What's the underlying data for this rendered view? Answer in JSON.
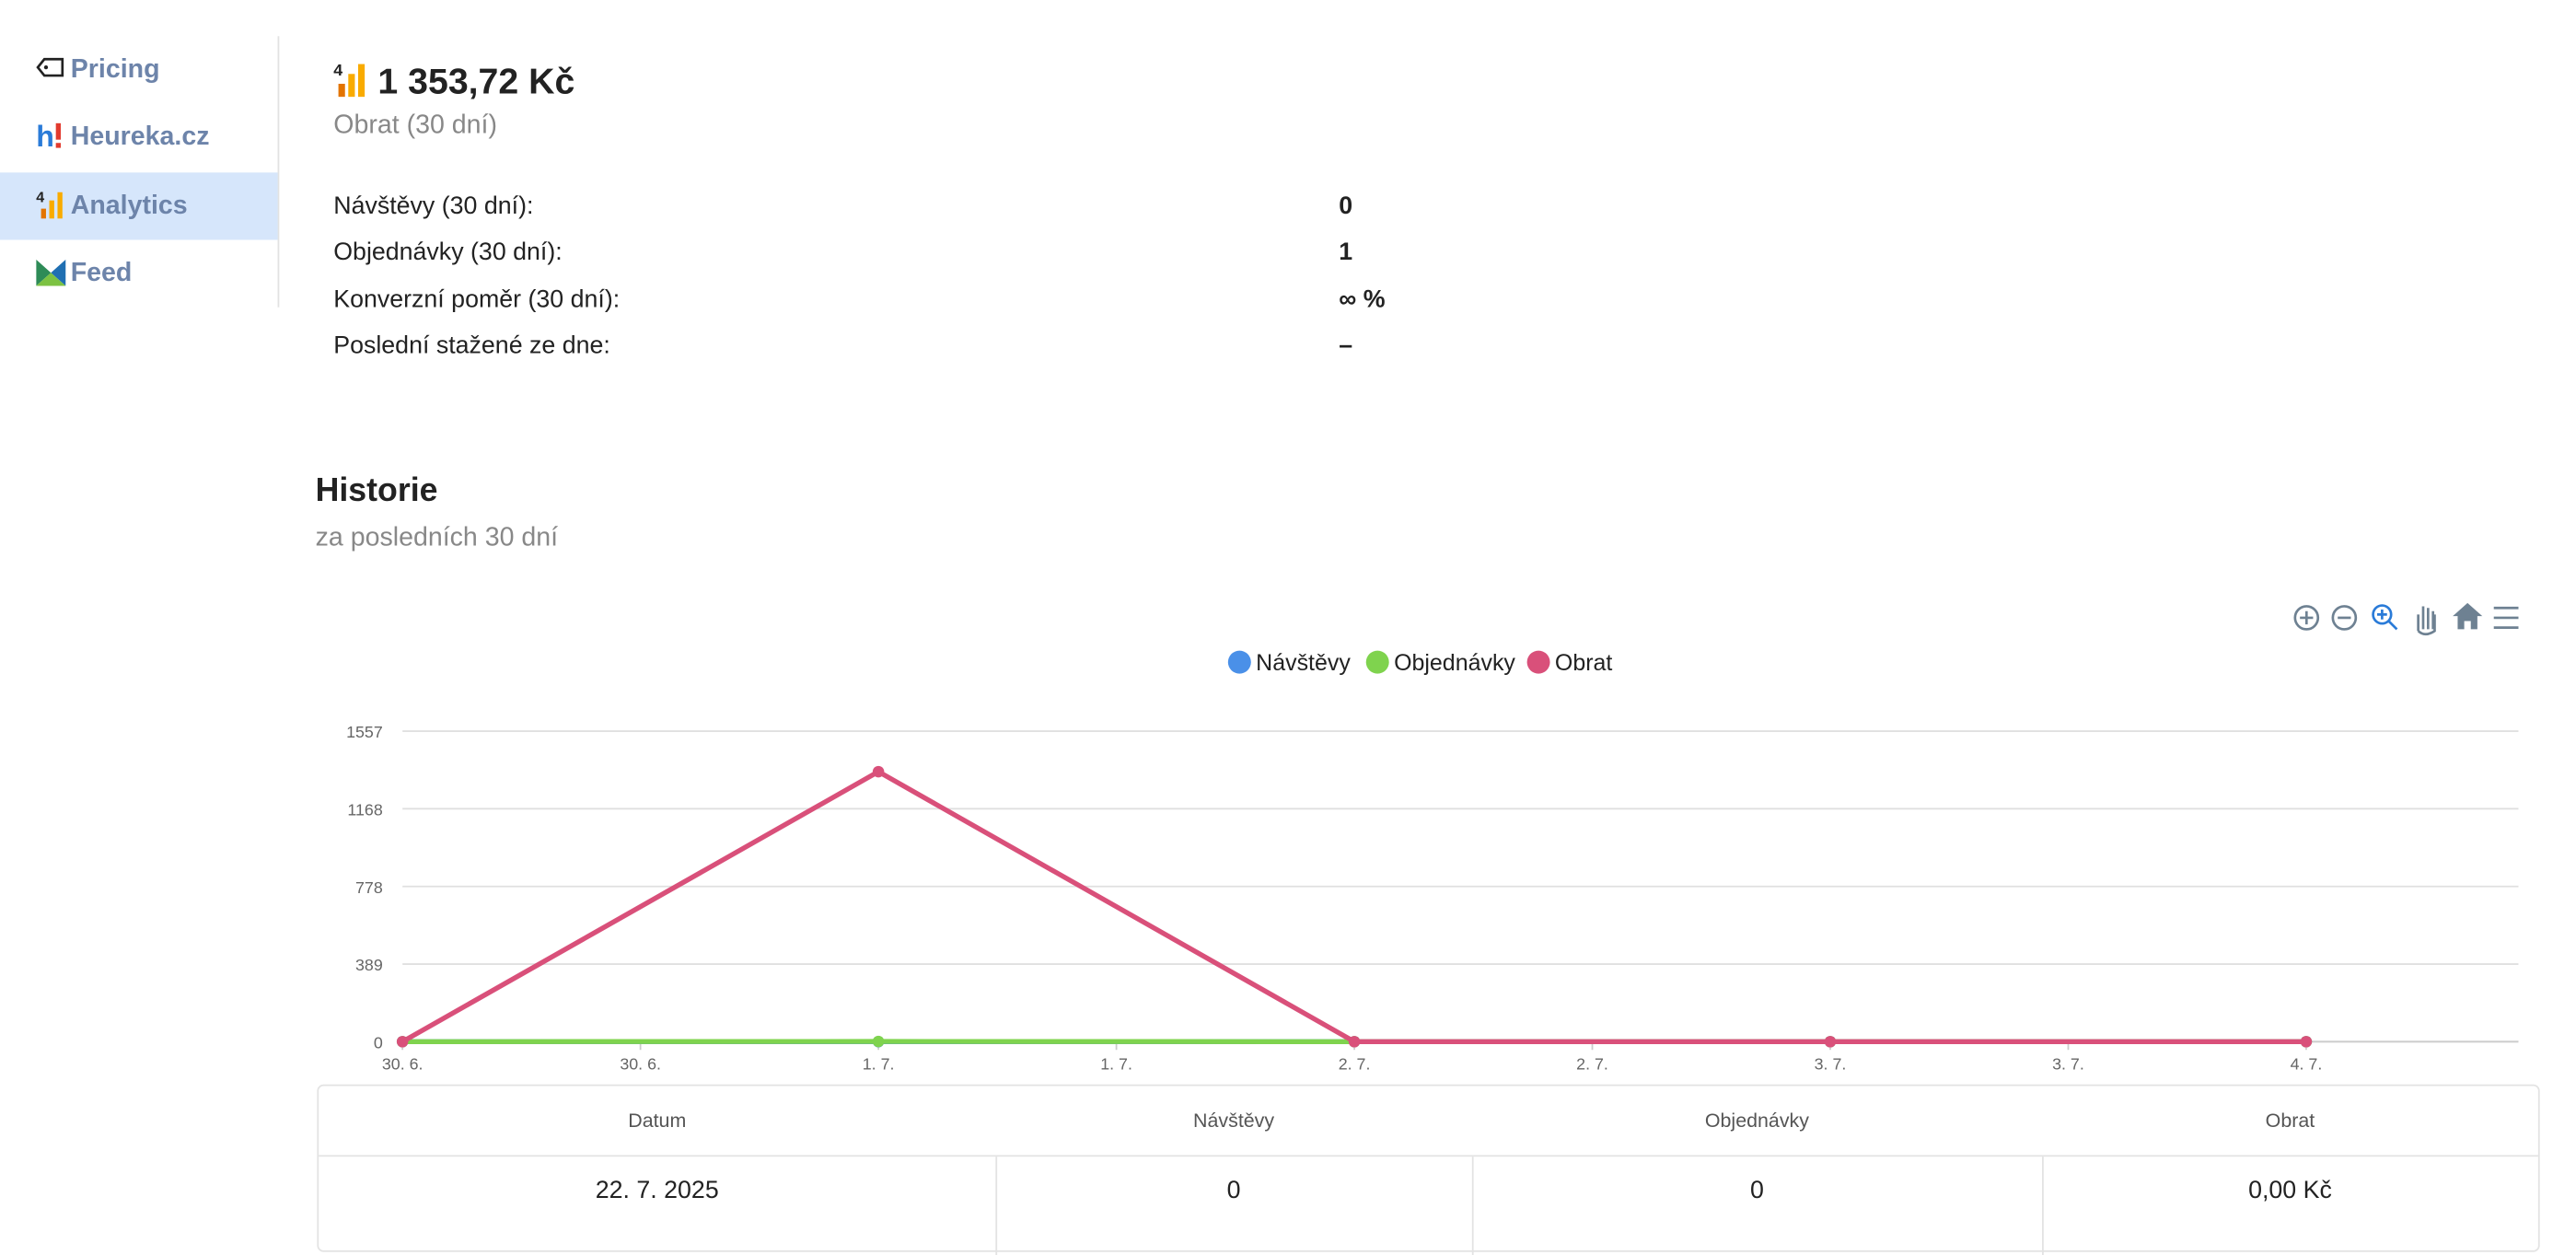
{
  "sidebar": {
    "items": [
      "Pricing",
      "Heureka.cz",
      "Analytics",
      "Feed"
    ]
  },
  "summary": {
    "value": "1 353,72 Kč",
    "label": "Obrat (30 dní)",
    "stats": [
      {
        "label": "Návštěvy (30 dní):",
        "value": "0"
      },
      {
        "label": "Objednávky (30 dní):",
        "value": "1"
      },
      {
        "label": "Konverzní poměr (30 dní):",
        "value": "∞ %"
      },
      {
        "label": "Poslední stažené ze dne:",
        "value": "–"
      }
    ]
  },
  "history": {
    "title": "Historie",
    "subtitle": "za posledních 30 dní"
  },
  "chart_data": {
    "type": "line",
    "categories": [
      "30. 6.",
      "1. 7.",
      "2. 7.",
      "3. 7.",
      "4. 7."
    ],
    "series": [
      {
        "name": "Návštěvy",
        "color": "#4a90e8",
        "values": [
          0,
          0,
          0,
          0,
          0
        ]
      },
      {
        "name": "Objednávky",
        "color": "#7fd34e",
        "values": [
          0,
          1,
          0,
          0,
          0
        ]
      },
      {
        "name": "Obrat",
        "color": "#d9507a",
        "values": [
          0,
          1353.72,
          0,
          0,
          0
        ]
      }
    ],
    "ylim": [
      0,
      1557
    ],
    "yticks": [
      0,
      389,
      778,
      1168,
      1557
    ],
    "xticks": [
      {
        "value": 0,
        "label": "30. 6."
      },
      {
        "value": 0.5,
        "label": "30. 6."
      },
      {
        "value": 1,
        "label": "1. 7."
      },
      {
        "value": 1.5,
        "label": "1. 7."
      },
      {
        "value": 2,
        "label": "2. 7."
      },
      {
        "value": 2.5,
        "label": "2. 7."
      },
      {
        "value": 3,
        "label": "3. 7."
      },
      {
        "value": 3.5,
        "label": "3. 7."
      },
      {
        "value": 4,
        "label": "4. 7."
      }
    ],
    "grid": true,
    "legend": "top"
  },
  "table": {
    "headers": [
      "Datum",
      "Návštěvy",
      "Objednávky",
      "Obrat"
    ],
    "rows": [
      [
        "22. 7. 2025",
        "0",
        "0",
        "0,00 Kč"
      ]
    ]
  }
}
